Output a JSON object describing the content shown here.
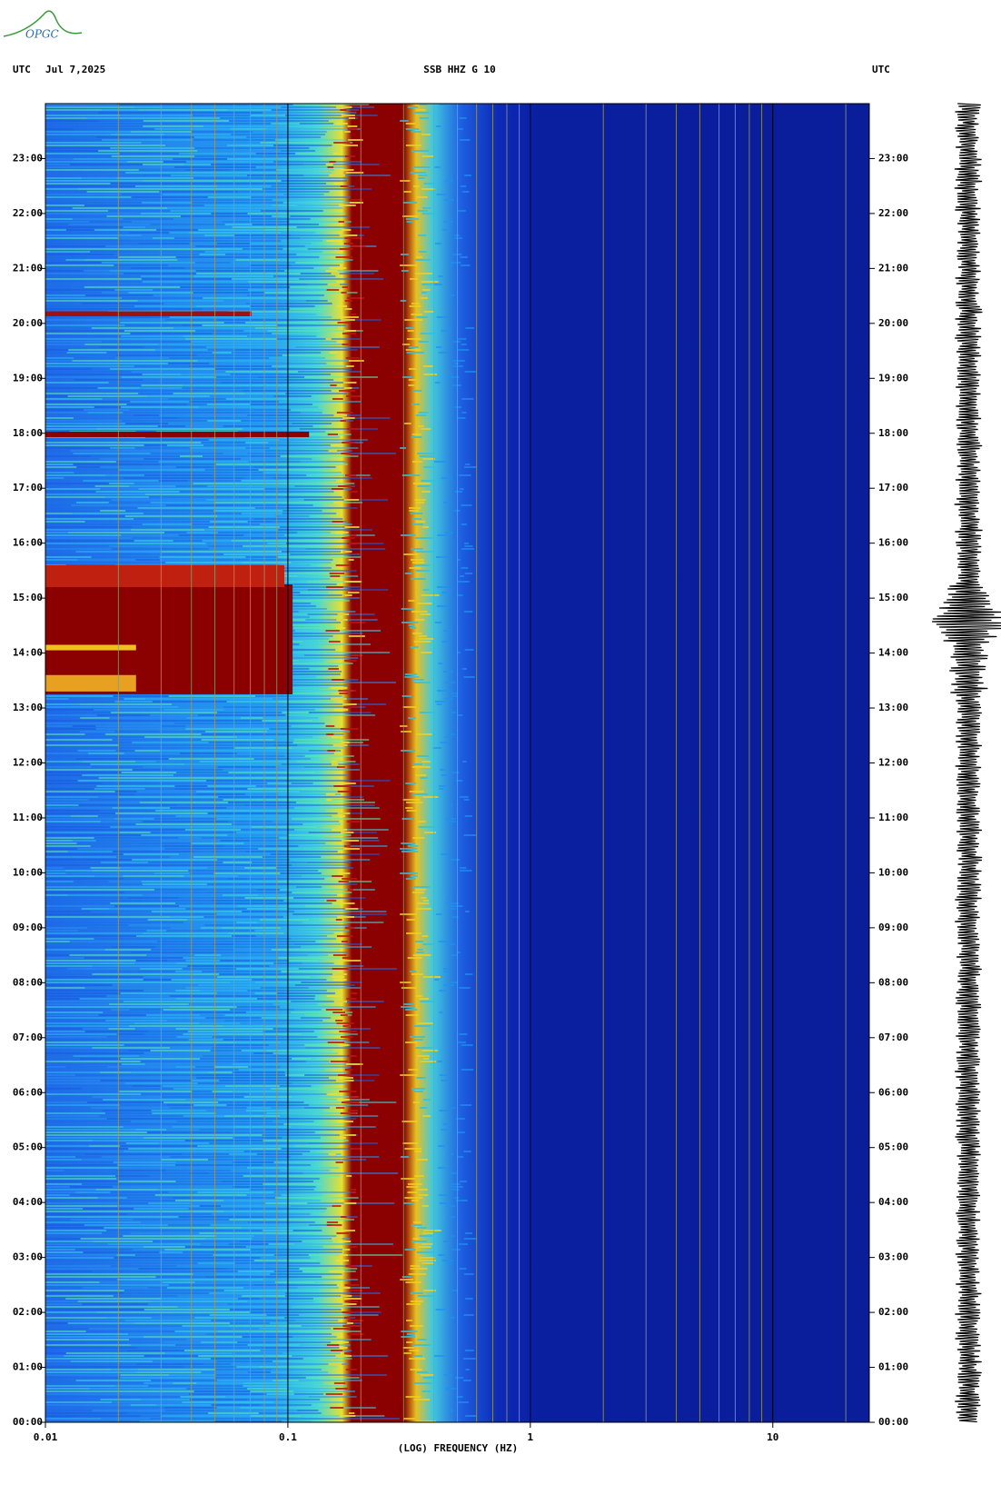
{
  "chart_data": {
    "type": "spectrogram",
    "logo": "OPGC",
    "left_label": "UTC",
    "date": "Jul 7,2025",
    "title": "SSB HHZ G 10",
    "right_label": "UTC",
    "xlabel": "(LOG) FREQUENCY (HZ)",
    "xscale": "log",
    "xlim": [
      0.01,
      25
    ],
    "xticks": [
      0.01,
      0.1,
      1,
      10
    ],
    "xminor": [
      0.02,
      0.03,
      0.04,
      0.05,
      0.06,
      0.07,
      0.08,
      0.09,
      0.2,
      0.3,
      0.4,
      0.5,
      0.6,
      0.7,
      0.8,
      0.9,
      2,
      3,
      4,
      5,
      6,
      7,
      8,
      9,
      20
    ],
    "ylim": [
      0,
      24
    ],
    "yticks": [
      {
        "value": 0,
        "label": "00:00"
      },
      {
        "value": 1,
        "label": "01:00"
      },
      {
        "value": 2,
        "label": "02:00"
      },
      {
        "value": 3,
        "label": "03:00"
      },
      {
        "value": 4,
        "label": "04:00"
      },
      {
        "value": 5,
        "label": "05:00"
      },
      {
        "value": 6,
        "label": "06:00"
      },
      {
        "value": 7,
        "label": "07:00"
      },
      {
        "value": 8,
        "label": "08:00"
      },
      {
        "value": 9,
        "label": "09:00"
      },
      {
        "value": 10,
        "label": "10:00"
      },
      {
        "value": 11,
        "label": "11:00"
      },
      {
        "value": 12,
        "label": "12:00"
      },
      {
        "value": 13,
        "label": "13:00"
      },
      {
        "value": 14,
        "label": "14:00"
      },
      {
        "value": 15,
        "label": "15:00"
      },
      {
        "value": 16,
        "label": "16:00"
      },
      {
        "value": 17,
        "label": "17:00"
      },
      {
        "value": 18,
        "label": "18:00"
      },
      {
        "value": 19,
        "label": "19:00"
      },
      {
        "value": 20,
        "label": "20:00"
      },
      {
        "value": 21,
        "label": "21:00"
      },
      {
        "value": 22,
        "label": "22:00"
      },
      {
        "value": 23,
        "label": "23:00"
      }
    ]
  }
}
